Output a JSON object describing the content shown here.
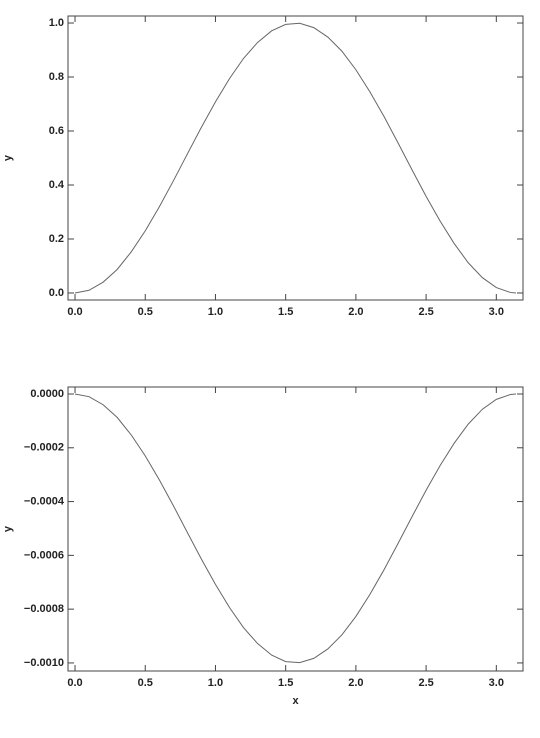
{
  "chart_data": [
    {
      "type": "line",
      "y_label": "y",
      "x": [
        0,
        0.1,
        0.2,
        0.3,
        0.4,
        0.5,
        0.6,
        0.7,
        0.8,
        0.9,
        1.0,
        1.1,
        1.2,
        1.3,
        1.4,
        1.5,
        1.6,
        1.7,
        1.8,
        1.9,
        2.0,
        2.1,
        2.2,
        2.3,
        2.4,
        2.5,
        2.6,
        2.7,
        2.8,
        2.9,
        3.0,
        3.1,
        3.14
      ],
      "series": [
        {
          "color": "#666666",
          "values": [
            0,
            0.01,
            0.04,
            0.087,
            0.152,
            0.23,
            0.319,
            0.415,
            0.515,
            0.614,
            0.708,
            0.794,
            0.869,
            0.928,
            0.971,
            0.995,
            0.999,
            0.983,
            0.948,
            0.896,
            0.827,
            0.745,
            0.654,
            0.556,
            0.456,
            0.358,
            0.266,
            0.183,
            0.112,
            0.057,
            0.02,
            0.002,
            0
          ]
        }
      ],
      "xlim": [
        -0.05,
        3.19
      ],
      "ylim": [
        -0.026,
        1.026
      ],
      "xticks": [
        {
          "value": 0,
          "label": "0.0"
        },
        0.5,
        {
          "value": 1,
          "label": "1.0"
        },
        1.5,
        {
          "value": 2,
          "label": "2.0"
        },
        2.5,
        {
          "value": 3,
          "label": "3.0"
        }
      ],
      "yticks": [
        {
          "value": 0,
          "label": "0.0"
        },
        0.2,
        0.4,
        0.6,
        0.8,
        {
          "value": 1,
          "label": "1.0"
        }
      ]
    },
    {
      "type": "line",
      "x_label": "x",
      "y_label": "y",
      "x": [
        0,
        0.1,
        0.2,
        0.3,
        0.4,
        0.5,
        0.6,
        0.7,
        0.8,
        0.9,
        1.0,
        1.1,
        1.2,
        1.3,
        1.4,
        1.5,
        1.6,
        1.7,
        1.8,
        1.9,
        2.0,
        2.1,
        2.2,
        2.3,
        2.4,
        2.5,
        2.6,
        2.7,
        2.8,
        2.9,
        3.0,
        3.1,
        3.14
      ],
      "series": [
        {
          "color": "#666666",
          "values": [
            0,
            -1e-05,
            -4e-05,
            -8.7e-05,
            -0.000152,
            -0.00023,
            -0.000319,
            -0.000415,
            -0.000515,
            -0.000614,
            -0.000708,
            -0.000794,
            -0.000869,
            -0.000928,
            -0.000971,
            -0.000995,
            -0.000999,
            -0.000983,
            -0.000948,
            -0.000896,
            -0.000827,
            -0.000745,
            -0.000654,
            -0.000556,
            -0.000456,
            -0.000358,
            -0.000266,
            -0.000183,
            -0.000112,
            -5.7e-05,
            -2e-05,
            -2e-06,
            0
          ]
        }
      ],
      "xlim": [
        -0.05,
        3.19
      ],
      "ylim": [
        -0.00103,
        2.6e-05
      ],
      "xticks": [
        {
          "value": 0,
          "label": "0.0"
        },
        0.5,
        {
          "value": 1,
          "label": "1.0"
        },
        1.5,
        {
          "value": 2,
          "label": "2.0"
        },
        2.5,
        {
          "value": 3,
          "label": "3.0"
        }
      ],
      "yticks": [
        {
          "value": 0,
          "label": "0.0000"
        },
        {
          "value": -0.0002,
          "label": "−0.0002"
        },
        {
          "value": -0.0004,
          "label": "−0.0004"
        },
        {
          "value": -0.0006,
          "label": "−0.0006"
        },
        {
          "value": -0.0008,
          "label": "−0.0008"
        },
        {
          "value": -0.001,
          "label": "−0.0010"
        }
      ]
    }
  ]
}
